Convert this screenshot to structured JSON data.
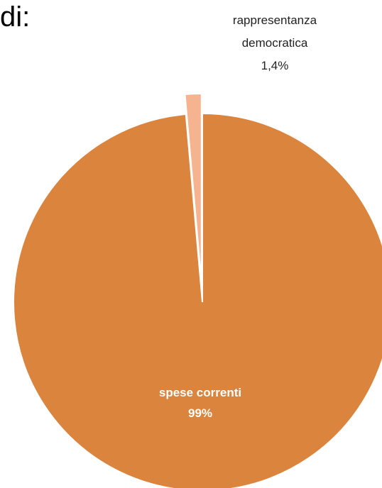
{
  "heading_fragment": "di:",
  "colors": {
    "main_slice": "#DA843E",
    "exploded_slice": "#F5B48F",
    "slice_border": "#FFFFFF",
    "main_label": "#FFFFFF",
    "outer_label": "#222222"
  },
  "chart_data": {
    "type": "pie",
    "title": "",
    "slices": [
      {
        "label": "spese correnti",
        "value": 99,
        "value_label": "99%",
        "color": "#DA843E"
      },
      {
        "label": "rappresentanza democratica",
        "label_lines": [
          "rappresentanza",
          "democratica"
        ],
        "value": 1.4,
        "value_label": "1,4%",
        "color": "#F5B48F",
        "exploded": true
      }
    ],
    "legend": "none"
  }
}
